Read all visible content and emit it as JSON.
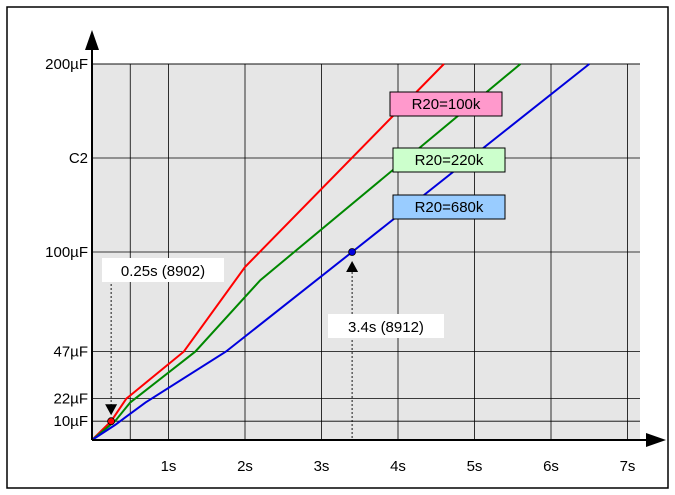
{
  "chart_data": {
    "type": "line",
    "title": "",
    "xlabel": "",
    "ylabel": "",
    "xlim": [
      0,
      7.5
    ],
    "ylim": [
      0,
      205
    ],
    "grid": true,
    "x_ticks": [
      {
        "value": 1,
        "label": "1s"
      },
      {
        "value": 2,
        "label": "2s"
      },
      {
        "value": 3,
        "label": "3s"
      },
      {
        "value": 4,
        "label": "4s"
      },
      {
        "value": 5,
        "label": "5s"
      },
      {
        "value": 6,
        "label": "6s"
      },
      {
        "value": 7,
        "label": "7s"
      }
    ],
    "x_minor_grid": [
      0.5
    ],
    "y_ticks": [
      {
        "value": 10,
        "label": "10µF"
      },
      {
        "value": 22,
        "label": "22µF"
      },
      {
        "value": 47,
        "label": "47µF"
      },
      {
        "value": 100,
        "label": "100µF"
      },
      {
        "value": 150,
        "label": "C2"
      },
      {
        "value": 200,
        "label": "200µF"
      }
    ],
    "series": [
      {
        "name": "R20=100k",
        "color": "#ff0000",
        "label_fill": "#ff99cc",
        "x": [
          0,
          0.25,
          0.45,
          1.2,
          2.0,
          4.6
        ],
        "y": [
          0,
          10,
          22,
          47,
          92,
          200
        ]
      },
      {
        "name": "R20=220k",
        "color": "#008800",
        "label_fill": "#ccffcc",
        "x": [
          0,
          0.3,
          0.5,
          1.35,
          2.2,
          5.6
        ],
        "y": [
          0,
          10,
          20,
          47,
          85,
          200
        ]
      },
      {
        "name": "R20=680k",
        "color": "#0000dd",
        "label_fill": "#99ccff",
        "x": [
          0,
          0.3,
          0.7,
          1.75,
          3.4,
          6.5
        ],
        "y": [
          0,
          8,
          20,
          47,
          100,
          200
        ]
      }
    ],
    "legend_position": "inline",
    "annotations": [
      {
        "text": "0.25s (8902)",
        "x": 0.25,
        "y": 10,
        "point_color": "#ff0000"
      },
      {
        "text": "3.4s (8912)",
        "x": 3.4,
        "y": 100,
        "point_color": "#0000dd"
      }
    ]
  }
}
